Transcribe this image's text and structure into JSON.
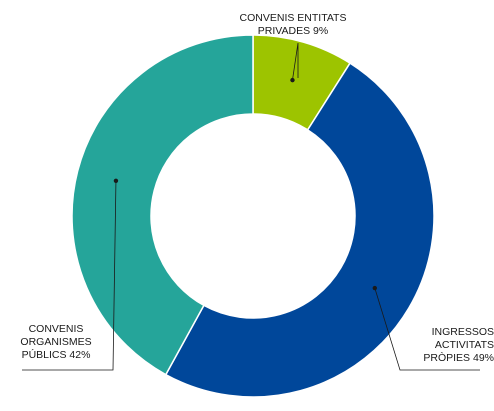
{
  "chart_data": {
    "type": "pie",
    "donut": true,
    "slices": [
      {
        "label_lines": [
          "CONVENIS ENTITATS",
          "PRIVADES 9%"
        ],
        "value": 9,
        "color": "#9dc400"
      },
      {
        "label_lines": [
          "INGRESSOS",
          "ACTIVITATS",
          "PRÒPIES 49%"
        ],
        "value": 49,
        "color": "#00479a"
      },
      {
        "label_lines": [
          "CONVENIS",
          "ORGANISMES",
          "PÚBLICS 42%"
        ],
        "value": 42,
        "color": "#25a59a"
      }
    ],
    "legend": "none"
  }
}
